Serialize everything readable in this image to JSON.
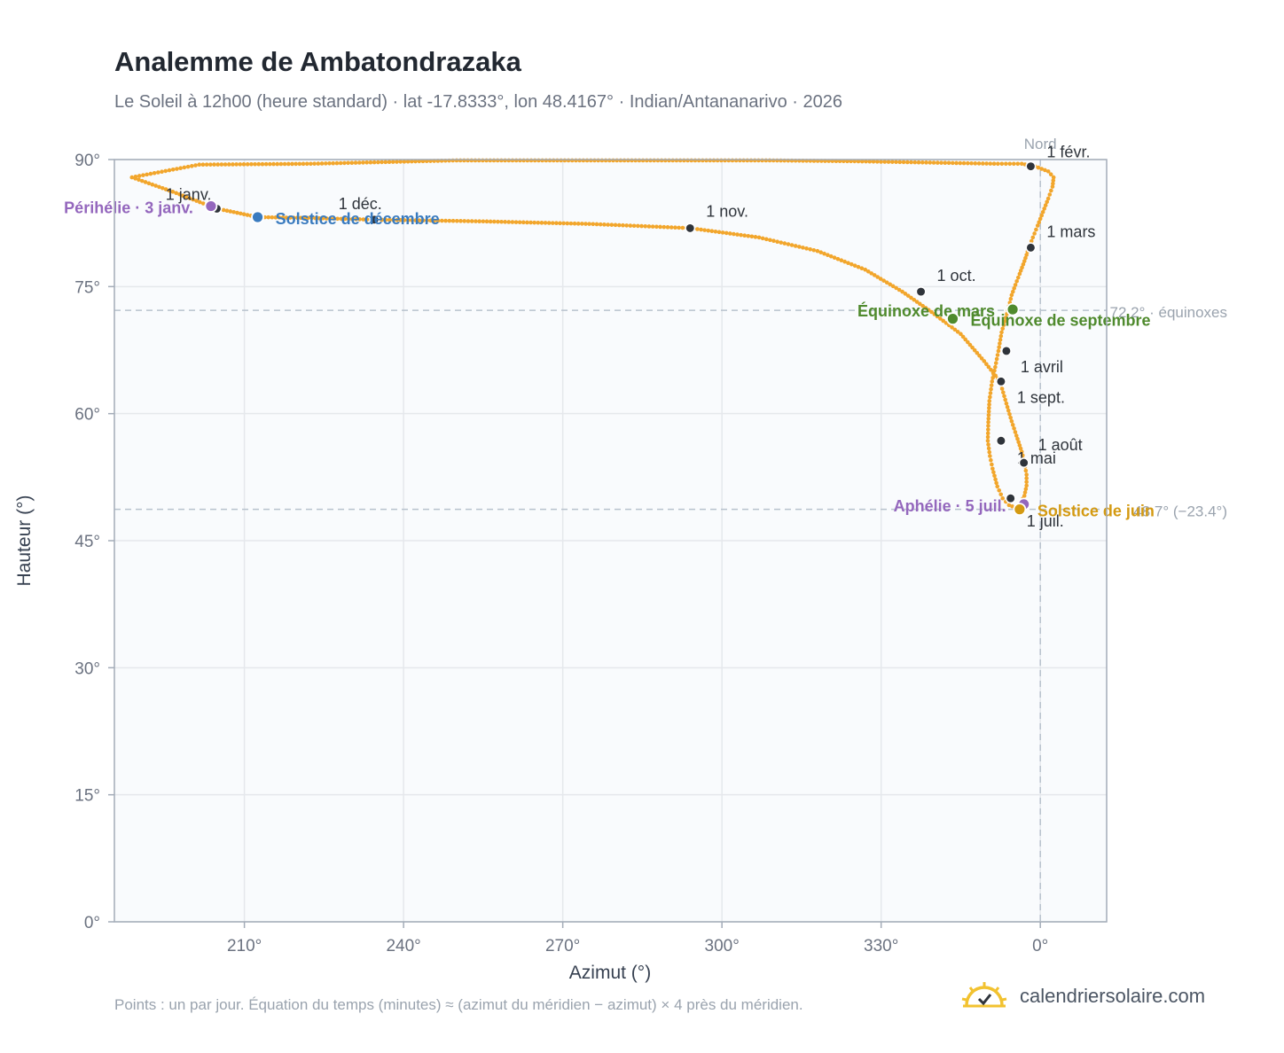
{
  "title": "Analemme de Ambatondrazaka",
  "subtitle": "Le Soleil à 12h00 (heure standard) · lat -17.8333°, lon 48.4167° · Indian/Antananarivo · 2026",
  "footnote": "Points : un par jour. Équation du temps (minutes) ≈ (azimut du méridien − azimut) × 4 près du méridien.",
  "brand": {
    "name": "calendriersolaire.com",
    "icon": "sun-check-icon"
  },
  "colors": {
    "curve": "#f2a62c",
    "date_dot": "#2f343b",
    "perihelion": "#9467bd",
    "aphelion": "#9467bd",
    "equinox": "#4f8a2d",
    "december_solstice": "#3a7bbf",
    "june_solstice": "#d49a12",
    "grid": "#e5e8ec",
    "plot_bg": "#f9fbfd"
  },
  "chart_data": {
    "type": "scatter",
    "xlabel": "Azimut (°)",
    "ylabel": "Hauteur (°)",
    "x_ticks": [
      "210°",
      "240°",
      "270°",
      "300°",
      "330°",
      "0°"
    ],
    "x_tick_values": [
      210,
      240,
      270,
      300,
      330,
      360
    ],
    "y_ticks": [
      "0°",
      "15°",
      "30°",
      "45°",
      "60°",
      "75°",
      "90°"
    ],
    "y_tick_values": [
      0,
      15,
      30,
      45,
      60,
      75,
      90
    ],
    "xlim": [
      185.5,
      372.5
    ],
    "ylim": [
      0,
      90
    ],
    "grid": true,
    "reference_lines": [
      {
        "axis": "y",
        "value": 72.2,
        "label": "72.2° · équinoxes"
      },
      {
        "axis": "y",
        "value": 48.7,
        "label": "48.7° (−23.4°)"
      },
      {
        "axis": "x",
        "value": 360,
        "label": "Nord"
      }
    ],
    "series": [
      {
        "points": [
          [
            204.8,
            84.2
          ],
          [
            196.5,
            86.2
          ],
          [
            188.8,
            87.9
          ],
          [
            201.5,
            89.4
          ],
          [
            222.5,
            89.5
          ],
          [
            250,
            89.9
          ],
          [
            309,
            89.9
          ],
          [
            325,
            89.8
          ],
          [
            352,
            89.5
          ],
          [
            356.5,
            89.5
          ],
          [
            359,
            89.2
          ],
          [
            361.5,
            88.6
          ],
          [
            362.5,
            87.9
          ],
          [
            362.3,
            86.8
          ],
          [
            361.5,
            85.4
          ],
          [
            360.5,
            83.8
          ],
          [
            359.5,
            82.2
          ],
          [
            358.6,
            80.8
          ],
          [
            357.8,
            79.5
          ],
          [
            357,
            78
          ],
          [
            356.1,
            76.5
          ],
          [
            355.3,
            75.2
          ],
          [
            354.6,
            74
          ],
          [
            353.9,
            72.2
          ],
          [
            353.3,
            70.9
          ],
          [
            352.7,
            69.6
          ],
          [
            352.1,
            67.4
          ],
          [
            351.5,
            65.5
          ],
          [
            350.9,
            63.8
          ],
          [
            350.4,
            61.5
          ],
          [
            350.2,
            59
          ],
          [
            350.1,
            56.8
          ],
          [
            350.5,
            55
          ],
          [
            351,
            53.5
          ],
          [
            351.9,
            51.4
          ],
          [
            352.9,
            50
          ],
          [
            354.1,
            49.2
          ],
          [
            355.3,
            48.9
          ],
          [
            355.6,
            48.7
          ],
          [
            356.2,
            49.3
          ],
          [
            357,
            50.3
          ],
          [
            357.4,
            51.5
          ],
          [
            357.4,
            52.8
          ],
          [
            357,
            54.2
          ],
          [
            356.5,
            55.5
          ],
          [
            355.5,
            57.4
          ],
          [
            354.6,
            59.1
          ],
          [
            353.6,
            61.2
          ],
          [
            352.4,
            63.8
          ],
          [
            349.4,
            66.2
          ],
          [
            345,
            69.4
          ],
          [
            339.5,
            72
          ],
          [
            334,
            74.4
          ],
          [
            327,
            77
          ],
          [
            318,
            79.2
          ],
          [
            307,
            80.8
          ],
          [
            294,
            81.9
          ],
          [
            275,
            82.4
          ],
          [
            255,
            82.7
          ],
          [
            234.5,
            82.9
          ],
          [
            222,
            83.1
          ],
          [
            212.5,
            83.2
          ],
          [
            208,
            83.8
          ],
          [
            204.8,
            84.2
          ]
        ]
      }
    ],
    "date_points": [
      {
        "label": "1 janv.",
        "x": 204.8,
        "y": 84.2
      },
      {
        "label": "1 févr.",
        "x": 358.2,
        "y": 89.2
      },
      {
        "label": "1 mars",
        "x": 358.2,
        "y": 79.6
      },
      {
        "label": "1 avril",
        "x": 353.6,
        "y": 67.4
      },
      {
        "label": "1 mai",
        "x": 352.6,
        "y": 56.8
      },
      {
        "label": "1 juil.",
        "x": 354.4,
        "y": 50
      },
      {
        "label": "1 août",
        "x": 356.9,
        "y": 54.2
      },
      {
        "label": "1 sept.",
        "x": 352.6,
        "y": 63.8
      },
      {
        "label": "1 oct.",
        "x": 337.5,
        "y": 74.4
      },
      {
        "label": "1 nov.",
        "x": 294.0,
        "y": 81.9
      },
      {
        "label": "1 déc.",
        "x": 234.5,
        "y": 82.9
      }
    ],
    "events": [
      {
        "label": "Périhélie · 3 janv.",
        "x": 203.7,
        "y": 84.5,
        "kind": "perihelion"
      },
      {
        "label": "Solstice de décembre",
        "x": 212.5,
        "y": 83.2,
        "kind": "december_solstice"
      },
      {
        "label": "Équinoxe de mars",
        "x": 354.8,
        "y": 72.3,
        "kind": "equinox"
      },
      {
        "label": "Équinoxe de septembre",
        "x": 343.5,
        "y": 71.2,
        "kind": "equinox"
      },
      {
        "label": "Aphélie · 5 juil.",
        "x": 356.9,
        "y": 49.3,
        "kind": "aphelion"
      },
      {
        "label": "Solstice de juin",
        "x": 356.1,
        "y": 48.7,
        "kind": "june_solstice"
      }
    ]
  }
}
